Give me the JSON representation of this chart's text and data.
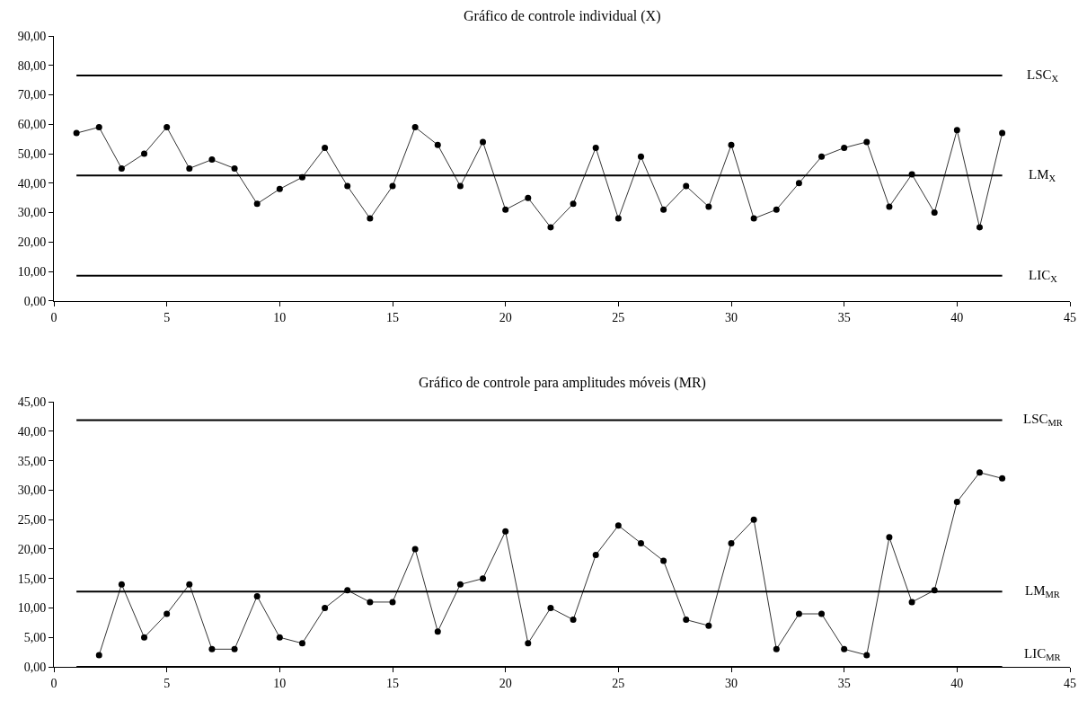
{
  "chart_data": [
    {
      "type": "line",
      "title": "Gráfico de controle individual (X)",
      "x": [
        1,
        2,
        3,
        4,
        5,
        6,
        7,
        8,
        9,
        10,
        11,
        12,
        13,
        14,
        15,
        16,
        17,
        18,
        19,
        20,
        21,
        22,
        23,
        24,
        25,
        26,
        27,
        28,
        29,
        30,
        31,
        32,
        33,
        34,
        35,
        36,
        37,
        38,
        39,
        40,
        41,
        42
      ],
      "series": [
        {
          "color": "#000000",
          "values": [
            57,
            59,
            45,
            50,
            59,
            45,
            48,
            45,
            33,
            38,
            42,
            52,
            39,
            28,
            39,
            59,
            53,
            39,
            54,
            31,
            35,
            25,
            33,
            52,
            28,
            49,
            31,
            39,
            32,
            53,
            28,
            31,
            40,
            49,
            52,
            54,
            32,
            43,
            30,
            58,
            25,
            57
          ]
        }
      ],
      "xlim": [
        0,
        45
      ],
      "xticks": [
        0,
        5,
        10,
        15,
        20,
        25,
        30,
        35,
        40,
        45
      ],
      "ylim": [
        0,
        90
      ],
      "yticks": [
        {
          "value": 0,
          "label": "0,00"
        },
        {
          "value": 10,
          "label": "10,00"
        },
        {
          "value": 20,
          "label": "20,00"
        },
        {
          "value": 30,
          "label": "30,00"
        },
        {
          "value": 40,
          "label": "40,00"
        },
        {
          "value": 50,
          "label": "50,00"
        },
        {
          "value": 60,
          "label": "60,00"
        },
        {
          "value": 70,
          "label": "70,00"
        },
        {
          "value": 80,
          "label": "80,00"
        },
        {
          "value": 90,
          "label": "90,00"
        }
      ],
      "ref_lines": [
        {
          "axis": "y",
          "value": 76.6,
          "label": "LSC$_{X}$",
          "color": "#000000"
        },
        {
          "axis": "y",
          "value": 42.6,
          "label": "LM$_{X}$",
          "color": "#000000"
        },
        {
          "axis": "y",
          "value": 8.6,
          "label": "LIC$_{X}$",
          "color": "#000000"
        }
      ],
      "marker": "circle",
      "line_style": "solid",
      "grid": false
    },
    {
      "type": "line",
      "title": "Gráfico de controle para amplitudes móveis (MR)",
      "x": [
        2,
        3,
        4,
        5,
        6,
        7,
        8,
        9,
        10,
        11,
        12,
        13,
        14,
        15,
        16,
        17,
        18,
        19,
        20,
        21,
        22,
        23,
        24,
        25,
        26,
        27,
        28,
        29,
        30,
        31,
        32,
        33,
        34,
        35,
        36,
        37,
        38,
        39,
        40,
        41,
        42
      ],
      "series": [
        {
          "color": "#000000",
          "values": [
            2,
            14,
            5,
            9,
            14,
            3,
            3,
            12,
            5,
            4,
            10,
            13,
            11,
            11,
            20,
            6,
            14,
            15,
            23,
            4,
            10,
            8,
            19,
            24,
            21,
            18,
            8,
            7,
            21,
            25,
            3,
            9,
            9,
            3,
            2,
            22,
            11,
            13,
            28,
            33,
            32
          ]
        }
      ],
      "xlim": [
        0,
        45
      ],
      "xticks": [
        0,
        5,
        10,
        15,
        20,
        25,
        30,
        35,
        40,
        45
      ],
      "ylim": [
        0,
        45
      ],
      "yticks": [
        {
          "value": 0,
          "label": "0,00"
        },
        {
          "value": 5,
          "label": "5,00"
        },
        {
          "value": 10,
          "label": "10,00"
        },
        {
          "value": 15,
          "label": "15,00"
        },
        {
          "value": 20,
          "label": "20,00"
        },
        {
          "value": 25,
          "label": "25,00"
        },
        {
          "value": 30,
          "label": "30,00"
        },
        {
          "value": 35,
          "label": "35,00"
        },
        {
          "value": 40,
          "label": "40,00"
        },
        {
          "value": 45,
          "label": "45,00"
        }
      ],
      "ref_lines": [
        {
          "axis": "y",
          "value": 41.9,
          "label": "LSC$_{MR}$",
          "color": "#000000"
        },
        {
          "axis": "y",
          "value": 12.8,
          "label": "LM$_{MR}$",
          "color": "#000000"
        },
        {
          "axis": "y",
          "value": 0,
          "label": "LIC$_{MR}$",
          "color": "#000000"
        }
      ],
      "marker": "circle",
      "line_style": "solid",
      "grid": false
    }
  ]
}
